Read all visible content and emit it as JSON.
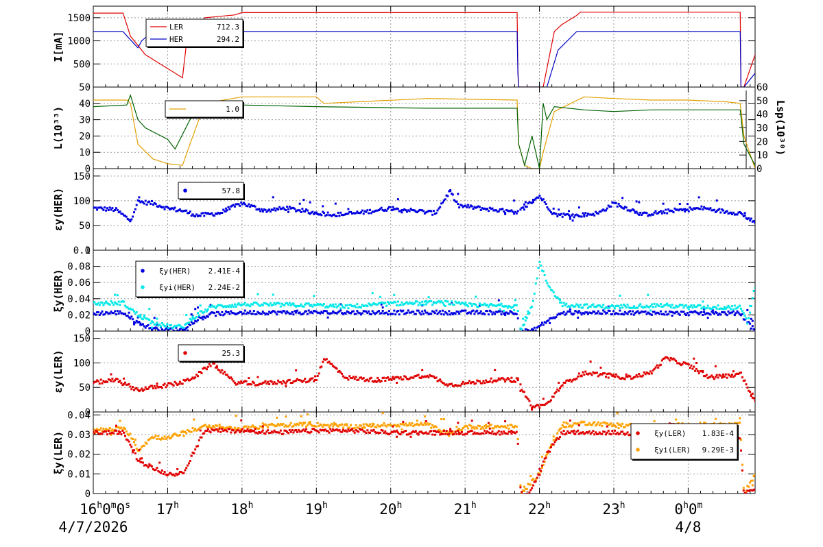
{
  "chart_data": [
    {
      "type": "line",
      "ylabel": "I[mA]",
      "yticks": [
        "500",
        "1000",
        "1500"
      ],
      "bottom_label": "50",
      "ylim": [
        0,
        1750
      ],
      "legend": [
        {
          "name": "LER",
          "value": "712.3",
          "color": "#e00000",
          "marker": "line"
        },
        {
          "name": "HER",
          "value": "294.2",
          "color": "#0000c0",
          "marker": "line"
        }
      ],
      "series": [
        {
          "name": "LER",
          "color": "#e00000",
          "x": [
            16.0,
            16.4,
            16.5,
            16.7,
            17.0,
            17.2,
            17.25,
            17.5,
            17.9,
            18.0,
            21.7,
            21.71,
            21.72,
            22.05,
            22.2,
            22.3,
            22.5,
            22.55,
            24.7,
            24.71,
            24.75,
            24.9
          ],
          "values": [
            1600,
            1600,
            1100,
            700,
            400,
            200,
            900,
            1500,
            1560,
            1610,
            1610,
            400,
            0,
            0,
            1200,
            1350,
            1550,
            1620,
            1620,
            0,
            0,
            700
          ]
        },
        {
          "name": "HER",
          "color": "#0000c0",
          "x": [
            16.0,
            16.4,
            16.5,
            16.6,
            16.65,
            16.8,
            17.0,
            18.0,
            21.7,
            21.71,
            21.72,
            22.1,
            22.25,
            22.5,
            22.7,
            24.7,
            24.71,
            24.75,
            24.9
          ],
          "values": [
            1200,
            1200,
            1020,
            850,
            1000,
            1200,
            1200,
            1200,
            1200,
            300,
            0,
            0,
            800,
            1200,
            1200,
            1200,
            0,
            0,
            300
          ]
        }
      ]
    },
    {
      "type": "line",
      "ylabel": "L(10³³)",
      "yticks": [
        "0",
        "10",
        "20",
        "30",
        "40"
      ],
      "ylim": [
        0,
        50
      ],
      "y2label": "Lsp(10³⁰)",
      "y2ticks": [
        "0",
        "10",
        "20",
        "30",
        "40",
        "50",
        "60"
      ],
      "y2lim": [
        0,
        60
      ],
      "legend": [
        {
          "name": "",
          "value": "1.0",
          "color": "#e0a000",
          "marker": "line"
        }
      ],
      "series": [
        {
          "name": "",
          "color": "#e0a000",
          "x": [
            16.0,
            16.45,
            16.5,
            16.6,
            16.8,
            17.0,
            17.2,
            17.3,
            17.5,
            18.0,
            19.0,
            19.1,
            20.5,
            21.7,
            21.72,
            21.8,
            21.9,
            22.0,
            22.05,
            22.2,
            22.6,
            23.0,
            23.5,
            24.0,
            24.5,
            24.7,
            24.75,
            24.9
          ],
          "values": [
            42,
            42,
            40,
            15,
            6,
            3,
            2,
            15,
            40,
            44,
            44,
            40,
            43,
            42,
            15,
            2,
            0,
            0,
            10,
            35,
            44,
            43,
            42,
            42,
            41,
            40,
            20,
            0
          ]
        },
        {
          "name": "",
          "color": "#006000",
          "x": [
            16.0,
            16.45,
            16.5,
            16.6,
            16.7,
            17.0,
            17.1,
            17.3,
            17.5,
            18.0,
            19.0,
            20.5,
            21.7,
            21.72,
            21.8,
            21.9,
            22.0,
            22.05,
            22.1,
            22.2,
            22.6,
            23.0,
            23.5,
            24.0,
            24.5,
            24.7,
            24.75,
            24.9
          ],
          "values": [
            38,
            39,
            45,
            30,
            25,
            18,
            12,
            30,
            40,
            39,
            38,
            37,
            37,
            15,
            2,
            20,
            0,
            40,
            30,
            38,
            36,
            35,
            36,
            36,
            36,
            36,
            15,
            2
          ]
        }
      ]
    },
    {
      "type": "scatter",
      "ylabel": "εy(HER)",
      "yticks": [
        "0",
        "50",
        "100",
        "150"
      ],
      "ylim": [
        0,
        165
      ],
      "legend": [
        {
          "name": "",
          "value": "57.8",
          "color": "#0000e0",
          "marker": "dot"
        }
      ],
      "series": [
        {
          "name": "",
          "color": "#0000e0",
          "x": [
            16.0,
            16.3,
            16.5,
            16.6,
            16.8,
            17.0,
            17.2,
            17.4,
            17.7,
            18.0,
            18.3,
            18.6,
            19.0,
            19.3,
            19.6,
            20.0,
            20.3,
            20.6,
            20.8,
            20.9,
            21.2,
            21.5,
            21.7,
            22.0,
            22.2,
            22.5,
            22.8,
            23.0,
            23.4,
            23.8,
            24.2,
            24.5,
            24.7,
            24.9
          ],
          "values": [
            85,
            82,
            60,
            98,
            95,
            85,
            80,
            70,
            75,
            95,
            80,
            85,
            75,
            72,
            76,
            85,
            80,
            75,
            120,
            90,
            85,
            80,
            75,
            110,
            72,
            70,
            75,
            95,
            72,
            80,
            85,
            78,
            75,
            55
          ]
        }
      ]
    },
    {
      "type": "scatter",
      "ylabel": "ξy(HER)",
      "yticks": [
        "0",
        "0.02",
        "0.04",
        "0.06",
        "0.08",
        "0.1"
      ],
      "ylim": [
        0,
        0.1
      ],
      "legend": [
        {
          "name": "ξy(HER)",
          "value": "2.41E-4",
          "color": "#0000e0",
          "marker": "dot"
        },
        {
          "name": "ξyi(HER)",
          "value": "2.24E-2",
          "color": "#00e8e8",
          "marker": "dot"
        }
      ],
      "series": [
        {
          "name": "ξy(HER)",
          "color": "#0000e0",
          "x": [
            16.0,
            16.4,
            16.6,
            16.8,
            17.0,
            17.2,
            17.4,
            17.6,
            18.0,
            19.0,
            20.0,
            21.0,
            21.7,
            21.75,
            21.9,
            22.1,
            22.3,
            22.6,
            23.0,
            24.0,
            24.7,
            24.9
          ],
          "values": [
            0.022,
            0.023,
            0.01,
            0.003,
            0.002,
            0.002,
            0.015,
            0.021,
            0.023,
            0.023,
            0.023,
            0.023,
            0.023,
            0.0,
            0.0,
            0.012,
            0.022,
            0.023,
            0.023,
            0.022,
            0.022,
            0.0
          ]
        },
        {
          "name": "ξyi(HER)",
          "color": "#00e8e8",
          "x": [
            16.0,
            16.4,
            16.6,
            16.8,
            17.0,
            17.2,
            17.4,
            17.6,
            18.0,
            19.0,
            19.4,
            20.0,
            20.8,
            21.0,
            21.7,
            21.75,
            21.9,
            22.0,
            22.1,
            22.3,
            22.6,
            23.0,
            23.6,
            24.0,
            24.7,
            24.8,
            24.9
          ],
          "values": [
            0.034,
            0.035,
            0.02,
            0.01,
            0.006,
            0.005,
            0.02,
            0.03,
            0.033,
            0.032,
            0.03,
            0.034,
            0.035,
            0.032,
            0.031,
            0.0,
            0.03,
            0.085,
            0.06,
            0.033,
            0.031,
            0.03,
            0.032,
            0.03,
            0.029,
            0.01,
            0.055
          ]
        }
      ]
    },
    {
      "type": "scatter",
      "ylabel": "εy(LER)",
      "yticks": [
        "0",
        "50",
        "100",
        "150"
      ],
      "ylim": [
        0,
        165
      ],
      "legend": [
        {
          "name": "",
          "value": "25.3",
          "color": "#e00000",
          "marker": "dot"
        }
      ],
      "series": [
        {
          "name": "",
          "color": "#e00000",
          "x": [
            16.0,
            16.3,
            16.6,
            16.8,
            17.0,
            17.2,
            17.4,
            17.6,
            17.9,
            18.2,
            18.6,
            19.0,
            19.1,
            19.4,
            19.8,
            20.1,
            20.5,
            20.8,
            21.1,
            21.4,
            21.7,
            21.9,
            22.1,
            22.3,
            22.6,
            22.9,
            23.2,
            23.5,
            23.7,
            24.0,
            24.3,
            24.6,
            24.7,
            24.9
          ],
          "values": [
            60,
            65,
            45,
            50,
            55,
            60,
            75,
            100,
            60,
            58,
            62,
            65,
            110,
            70,
            65,
            68,
            75,
            55,
            60,
            65,
            65,
            10,
            15,
            55,
            80,
            75,
            70,
            80,
            110,
            95,
            70,
            75,
            80,
            20
          ]
        }
      ]
    },
    {
      "type": "scatter",
      "ylabel": "ξy(LER)",
      "yticks": [
        "0",
        "0.01",
        "0.02",
        "0.03",
        "0.04"
      ],
      "ylim": [
        0,
        0.0415
      ],
      "legend": [
        {
          "name": "ξy(LER)",
          "value": "1.83E-4",
          "color": "#e00000",
          "marker": "dot"
        },
        {
          "name": "ξyi(LER)",
          "value": "9.29E-3",
          "color": "#ffa000",
          "marker": "dot"
        }
      ],
      "series": [
        {
          "name": "ξyi(LER)",
          "color": "#ffa000",
          "x": [
            16.0,
            16.4,
            16.5,
            16.6,
            16.8,
            17.0,
            17.2,
            17.5,
            18.0,
            18.5,
            19.0,
            19.5,
            20.0,
            20.5,
            20.8,
            21.0,
            21.7,
            21.75,
            21.8,
            22.0,
            22.1,
            22.3,
            22.6,
            23.0,
            23.5,
            24.0,
            24.7,
            24.75,
            24.9
          ],
          "values": [
            0.032,
            0.033,
            0.03,
            0.022,
            0.029,
            0.028,
            0.031,
            0.034,
            0.033,
            0.035,
            0.035,
            0.034,
            0.035,
            0.035,
            0.03,
            0.034,
            0.034,
            0.0,
            0.002,
            0.01,
            0.02,
            0.034,
            0.036,
            0.035,
            0.034,
            0.035,
            0.035,
            0.0,
            0.009
          ]
        },
        {
          "name": "ξy(LER)",
          "color": "#e00000",
          "x": [
            16.0,
            16.4,
            16.5,
            16.6,
            16.8,
            17.0,
            17.2,
            17.5,
            18.0,
            18.5,
            19.0,
            19.5,
            20.0,
            20.5,
            21.0,
            21.7,
            21.75,
            21.85,
            22.0,
            22.1,
            22.3,
            22.6,
            23.0,
            23.5,
            24.0,
            24.7,
            24.75,
            24.9
          ],
          "values": [
            0.031,
            0.031,
            0.025,
            0.017,
            0.013,
            0.01,
            0.01,
            0.032,
            0.032,
            0.031,
            0.032,
            0.032,
            0.031,
            0.031,
            0.031,
            0.031,
            0.0,
            0.0,
            0.01,
            0.02,
            0.031,
            0.031,
            0.031,
            0.03,
            0.03,
            0.029,
            0.0,
            0.002
          ]
        }
      ]
    }
  ],
  "x_axis": {
    "range": [
      16.0,
      24.9
    ],
    "ticks": [
      {
        "x": 16.0,
        "hour": "16",
        "min": "0",
        "sec": "0"
      },
      {
        "x": 17.0,
        "hour": "17"
      },
      {
        "x": 18.0,
        "hour": "18"
      },
      {
        "x": 19.0,
        "hour": "19"
      },
      {
        "x": 20.0,
        "hour": "20"
      },
      {
        "x": 21.0,
        "hour": "21"
      },
      {
        "x": 22.0,
        "hour": "22"
      },
      {
        "x": 23.0,
        "hour": "23"
      },
      {
        "x": 24.0,
        "hour": "0",
        "min": "0"
      }
    ],
    "dates": [
      {
        "x": 16.0,
        "text": "4/7/2026"
      },
      {
        "x": 24.0,
        "text": "4/8"
      }
    ]
  }
}
